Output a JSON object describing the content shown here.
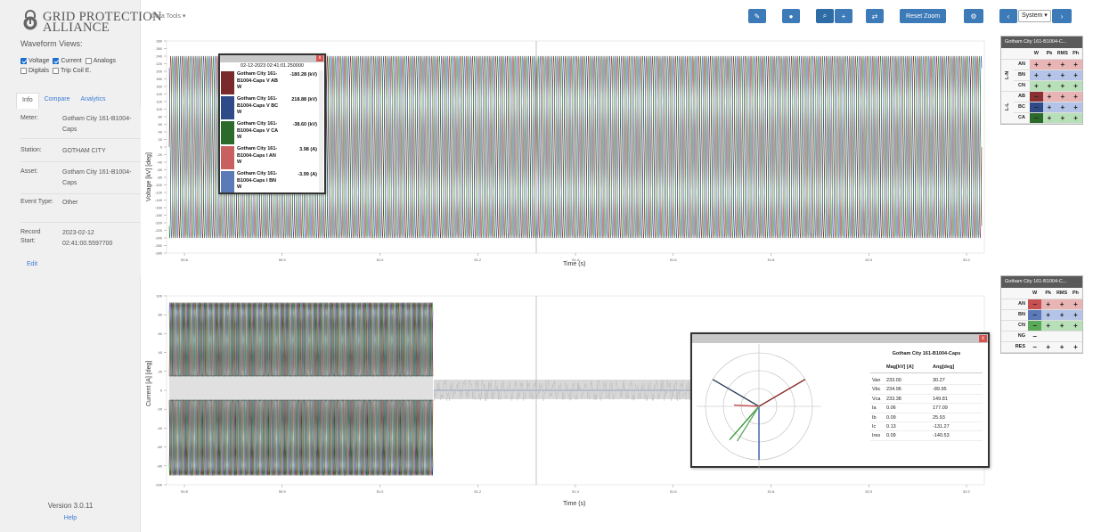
{
  "brand": {
    "line1": "GRID PROTECTION",
    "line2": "ALLIANCE"
  },
  "sidebar": {
    "waveform_views_title": "Waveform Views:",
    "checkboxes": [
      {
        "label": "Voltage",
        "checked": true
      },
      {
        "label": "Current",
        "checked": true
      },
      {
        "label": "Analogs",
        "checked": false
      },
      {
        "label": "Digitals",
        "checked": false
      },
      {
        "label": "Trip Coil E.",
        "checked": false
      }
    ],
    "tabs": [
      "Info",
      "Compare",
      "Analytics"
    ],
    "info": [
      {
        "key": "Meter:",
        "value": "Gotham City 161-B1004-Caps"
      },
      {
        "key": "Station:",
        "value": "GOTHAM CITY"
      },
      {
        "key": "Asset:",
        "value": "Gotham City 161-B1004-Caps"
      },
      {
        "key": "Event Type:",
        "value": "Other"
      },
      {
        "key": "Record Start:",
        "value": "2023-02-12 02:41:00.5597700"
      }
    ],
    "edit": "Edit",
    "version": "Version 3.0.11",
    "help": "Help"
  },
  "toolbar": {
    "data_tools": "Data Tools ▾",
    "reset_zoom": "Reset Zoom",
    "system_select": "System",
    "icons": [
      "pencil-icon",
      "circle-icon",
      "zoom-icon",
      "plus-icon",
      "swap-icon",
      "gear-icon",
      "chevron-left-icon",
      "chevron-right-icon"
    ]
  },
  "colors": {
    "accent": "#3d7ab8",
    "a": "#b03a3a",
    "b": "#3a5aa8",
    "c": "#3a9a3a"
  },
  "chart_data": [
    {
      "type": "line",
      "ylabel": "Voltage [kV] [deg]",
      "xlabel": "Time (s)",
      "yticks": [
        280,
        260,
        240,
        220,
        200,
        180,
        160,
        140,
        120,
        100,
        80,
        60,
        40,
        20,
        0,
        -20,
        -40,
        -60,
        -80,
        -100,
        -120,
        -140,
        -160,
        -180,
        -200,
        -220,
        -240,
        -260,
        -280
      ],
      "xticks": [
        "50.8",
        "50.9",
        "51.0",
        "51.2",
        "51.4",
        "51.6",
        "51.8",
        "52.0",
        "52.2"
      ],
      "series_colors": [
        "#8b2a2a",
        "#3a5aa8",
        "#2e7d2e"
      ]
    },
    {
      "type": "line",
      "ylabel": "Current [A] [deg]",
      "xlabel": "Time (s)",
      "yticks": [
        100,
        80,
        60,
        40,
        20,
        0,
        -20,
        -40,
        -60,
        -80,
        -100
      ],
      "xticks": [
        "50.8",
        "50.9",
        "51.0",
        "51.2",
        "51.4",
        "51.6",
        "51.8",
        "52.0",
        "52.2"
      ]
    }
  ],
  "tooltip": {
    "time": "02-12-2023 02:41:01.250000",
    "rows": [
      {
        "name": "Gotham City 161-B1004-Caps V AB W",
        "value": "-180.28 (kV)",
        "color": "#7a2a2a"
      },
      {
        "name": "Gotham City 161-B1004-Caps V BC W",
        "value": "218.88 (kV)",
        "color": "#2f4a88"
      },
      {
        "name": "Gotham City 161-B1004-Caps V CA W",
        "value": "-38.60 (kV)",
        "color": "#2b6a2b"
      },
      {
        "name": "Gotham City 161-B1004-Caps I AN W",
        "value": "3.98 (A)",
        "color": "#c86060"
      },
      {
        "name": "Gotham City 161-B1004-Caps I BN W",
        "value": "-3.99 (A)",
        "color": "#5a7ab8"
      }
    ]
  },
  "voltage_table": {
    "title": "Gotham City 161-B1004-C...",
    "cols": [
      "W",
      "Pk",
      "RMS",
      "Ph"
    ],
    "groups": [
      "L-N",
      "L-L"
    ],
    "rows": [
      "AN",
      "BN",
      "CN",
      "AB",
      "BC",
      "CA"
    ]
  },
  "current_table": {
    "title": "Gotham City 161-B1004-C...",
    "cols": [
      "W",
      "Pk",
      "RMS",
      "Ph"
    ],
    "rows": [
      "AN",
      "BN",
      "CN",
      "NG",
      "RES"
    ]
  },
  "phasor": {
    "title": "Gotham City 161-B1004-Caps",
    "col1": "Mag[kV] [A]",
    "col2": "Ang[deg]",
    "rows": [
      {
        "n": "Van",
        "mag": "233.00",
        "ang": "30.27"
      },
      {
        "n": "Vbc",
        "mag": "234.96",
        "ang": "-89.95"
      },
      {
        "n": "Vca",
        "mag": "233.38",
        "ang": "149.81"
      },
      {
        "n": "Ia",
        "mag": "0.06",
        "ang": "177.09"
      },
      {
        "n": "Ib",
        "mag": "0.09",
        "ang": "25.93"
      },
      {
        "n": "Ic",
        "mag": "0.13",
        "ang": "-131.27"
      },
      {
        "n": "Ires",
        "mag": "0.09",
        "ang": "-140.53"
      }
    ]
  }
}
